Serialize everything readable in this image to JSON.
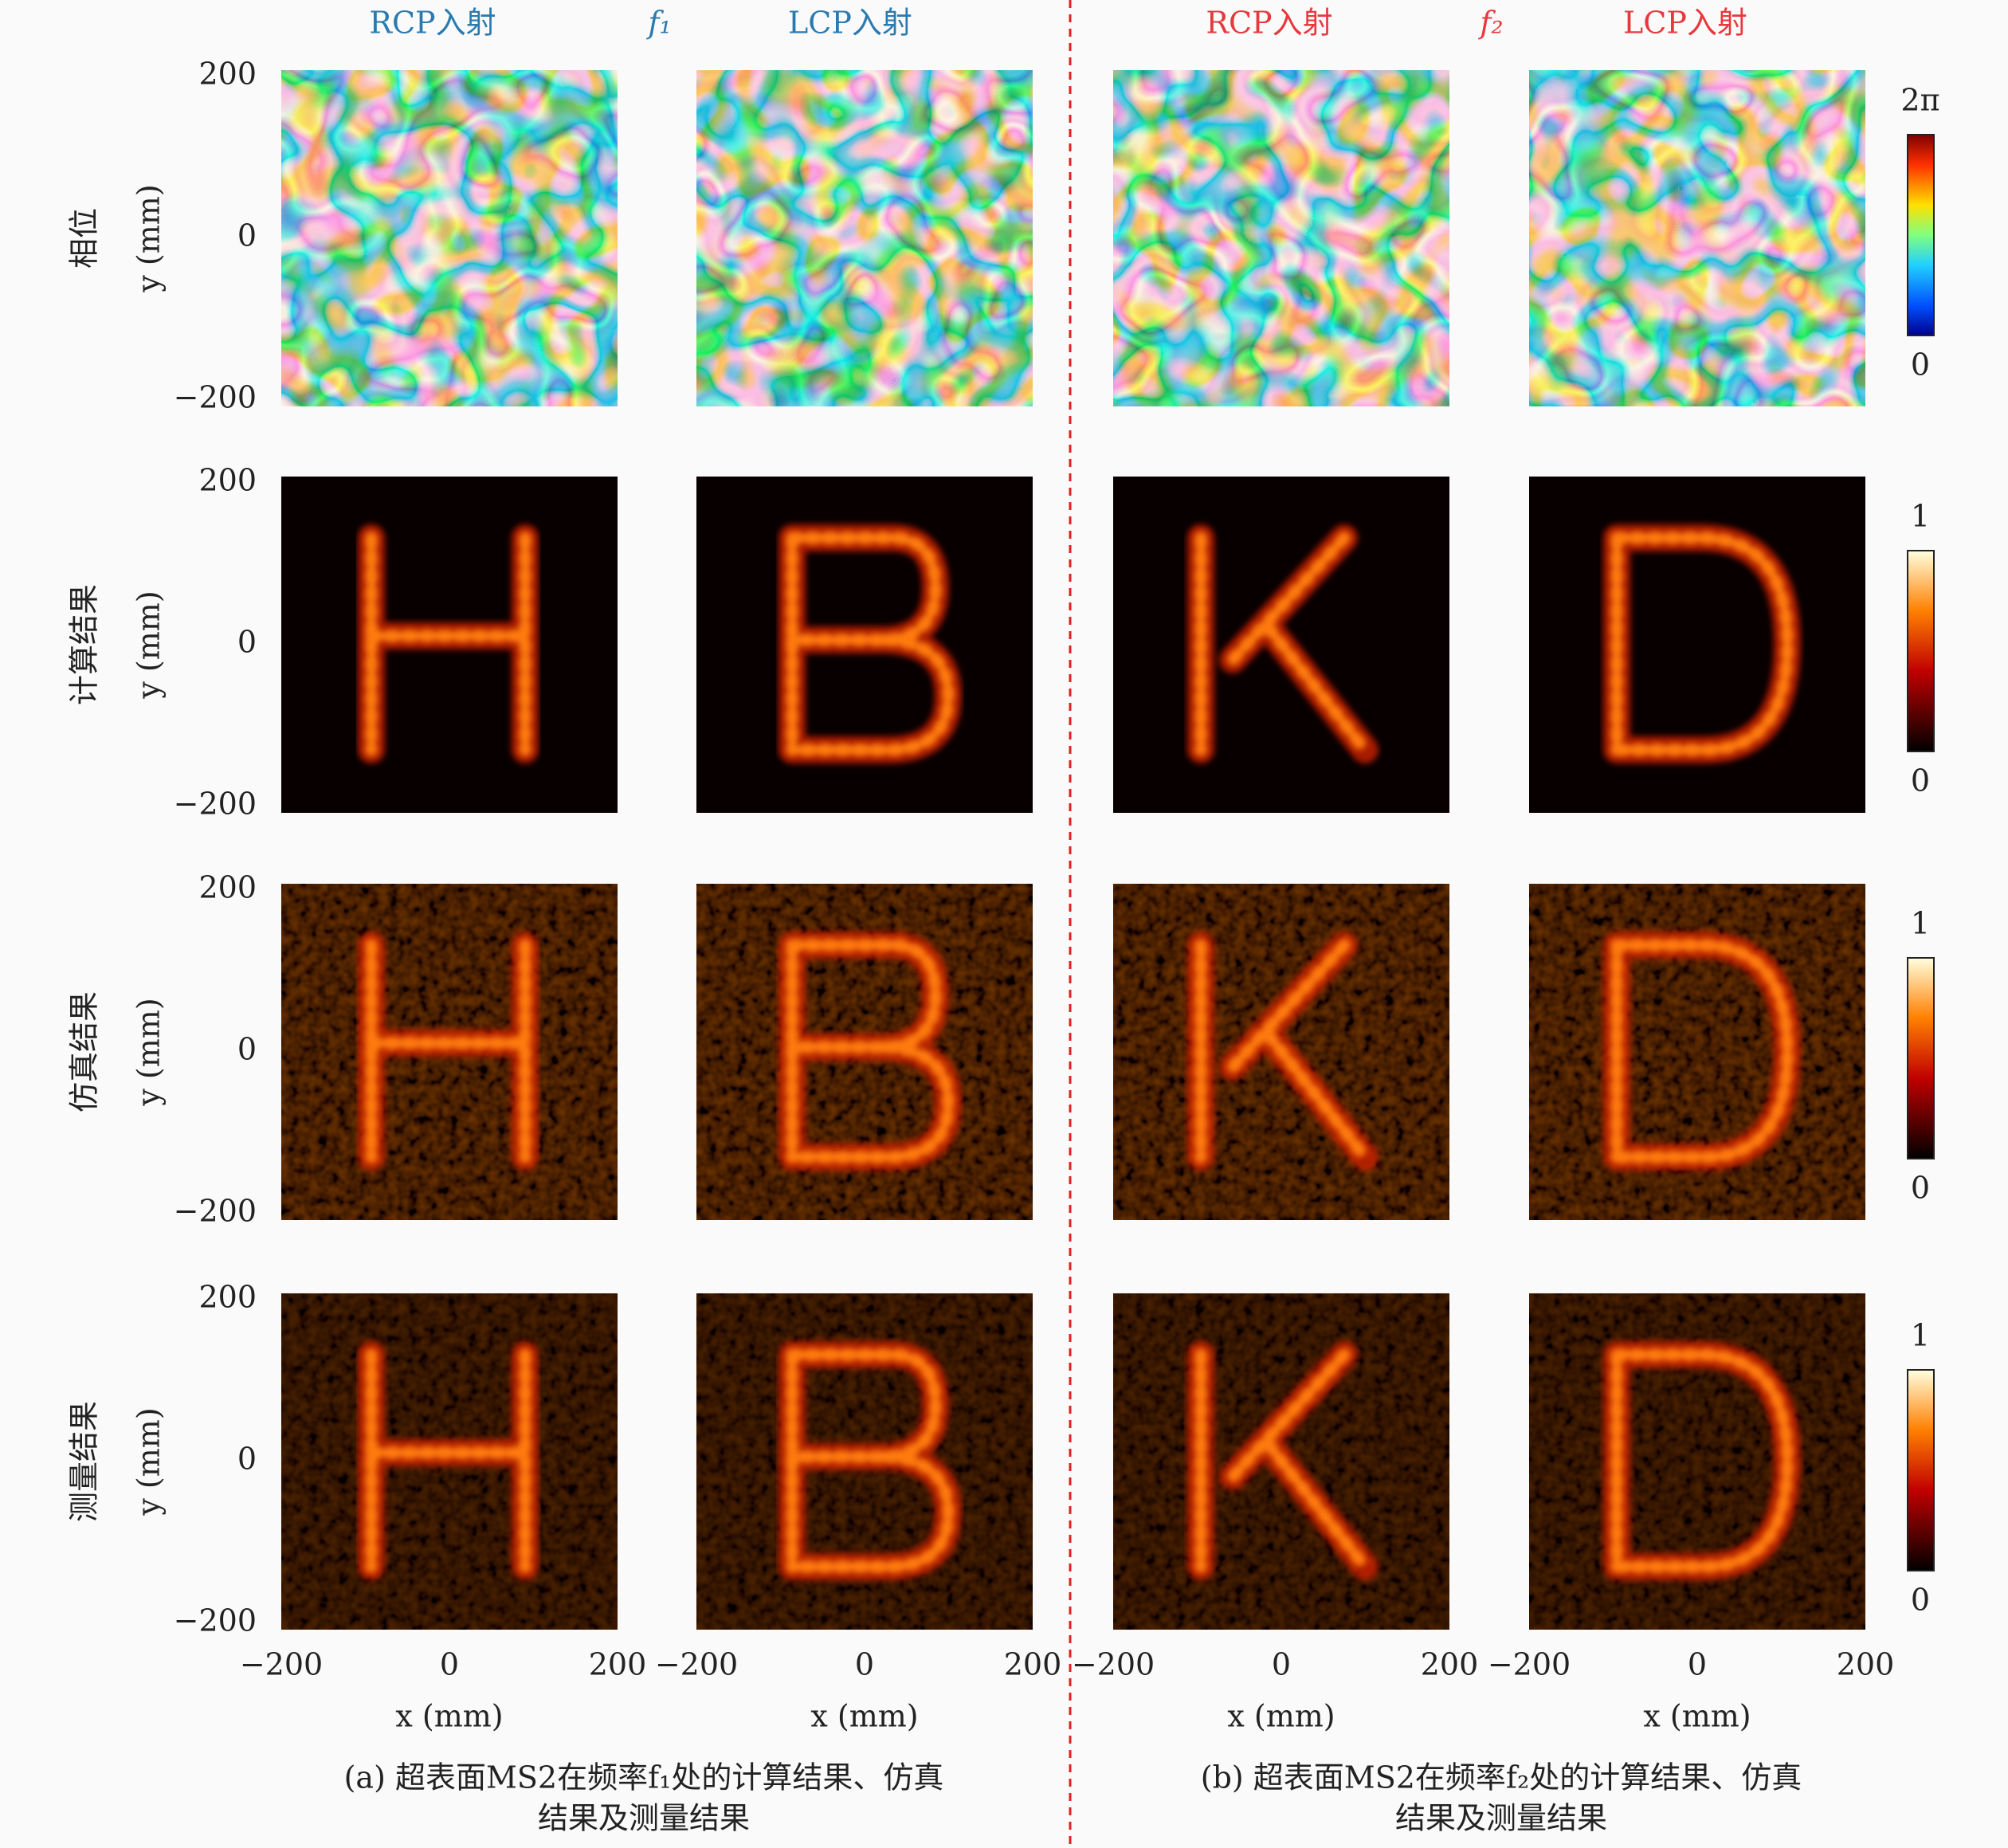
{
  "columns": [
    {
      "label": "RCP入射",
      "group": 0
    },
    {
      "label": "LCP入射",
      "group": 0
    },
    {
      "label": "RCP入射",
      "group": 1
    },
    {
      "label": "LCP入射",
      "group": 1
    }
  ],
  "frequencies": [
    "f₁",
    "f₂"
  ],
  "rows": [
    "相位",
    "计算结果",
    "仿真结果",
    "测量结果"
  ],
  "y_axis_label": "y (mm)",
  "x_axis_label": "x (mm)",
  "y_ticks": [
    "200",
    "0",
    "−200"
  ],
  "x_ticks": [
    "−200",
    "0",
    "200"
  ],
  "colorbars": [
    {
      "max": "2π",
      "min": "0"
    },
    {
      "max": "1",
      "min": "0"
    },
    {
      "max": "1",
      "min": "0"
    },
    {
      "max": "1",
      "min": "0"
    }
  ],
  "captions": [
    [
      "(a) 超表面MS2在频率f₁处的计算结果、仿真",
      "结果及测量结果"
    ],
    [
      "(b) 超表面MS2在频率f₂处的计算结果、仿真",
      "结果及测量结果"
    ]
  ]
}
